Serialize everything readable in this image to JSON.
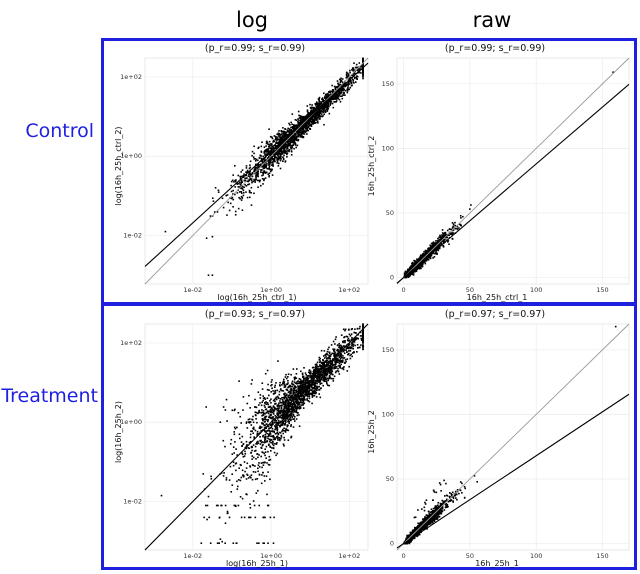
{
  "column_titles": [
    "log",
    "raw"
  ],
  "row_titles": [
    "Control",
    "Treatment"
  ],
  "colors": {
    "frame": "#1f1fe0",
    "points": "#000000",
    "fit_line": "#000000",
    "identity_line": "#9a9a9a",
    "grid": "#ececec"
  },
  "chart_data": [
    {
      "type": "scatter",
      "title": "(p_r=0.99; s_r=0.99)",
      "xlabel": "log(16h_25h_ctrl_1)",
      "ylabel": "log(16h_25h_ctrl_2)",
      "scale": "log",
      "xlim": [
        0.0006,
        300
      ],
      "ylim": [
        0.0006,
        300
      ],
      "xticks": [
        "1e-02",
        "1e+00",
        "1e+02"
      ],
      "yticks": [
        "1e-02",
        "1e+00",
        "1e+02"
      ],
      "pearson_r": 0.99,
      "spearman_r": 0.99,
      "lines": [
        "identity (y = x)",
        "regression fit"
      ],
      "grid": true
    },
    {
      "type": "scatter",
      "title": "(p_r=0.99; s_r=0.99)",
      "xlabel": "16h_25h_ctrl_1",
      "ylabel": "16h_25h_ctrl_2",
      "scale": "linear",
      "xlim": [
        -5,
        170
      ],
      "ylim": [
        -5,
        170
      ],
      "xticks": [
        "0",
        "50",
        "100",
        "150"
      ],
      "yticks": [
        "0",
        "50",
        "100",
        "150"
      ],
      "pearson_r": 0.99,
      "spearman_r": 0.99,
      "lines": [
        "identity (y = x)",
        "regression fit"
      ],
      "grid": true
    },
    {
      "type": "scatter",
      "title": "(p_r=0.93; s_r=0.97)",
      "xlabel": "log(16h_25h_1)",
      "ylabel": "log(16h_25h_2)",
      "scale": "log",
      "xlim": [
        0.0006,
        300
      ],
      "ylim": [
        0.0006,
        300
      ],
      "xticks": [
        "1e-02",
        "1e+00",
        "1e+02"
      ],
      "yticks": [
        "1e-02",
        "1e+00",
        "1e+02"
      ],
      "pearson_r": 0.93,
      "spearman_r": 0.97,
      "lines": [
        "identity (y = x)",
        "regression fit"
      ],
      "grid": true
    },
    {
      "type": "scatter",
      "title": "(p_r=0.97; s_r=0.97)",
      "xlabel": "16h_25h_1",
      "ylabel": "16h_25h_2",
      "scale": "linear",
      "xlim": [
        -5,
        170
      ],
      "ylim": [
        -5,
        170
      ],
      "xticks": [
        "0",
        "50",
        "100",
        "150"
      ],
      "yticks": [
        "0",
        "50",
        "100",
        "150"
      ],
      "pearson_r": 0.97,
      "spearman_r": 0.97,
      "lines": [
        "identity (y = x)",
        "regression fit"
      ],
      "grid": true
    }
  ]
}
